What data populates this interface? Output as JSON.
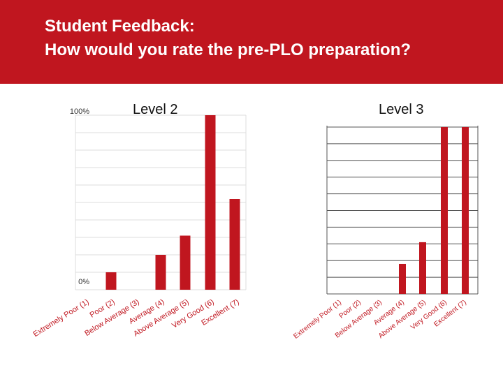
{
  "header": {
    "title_line1": "Student Feedback:",
    "title_line2": "How would you rate the pre-PLO preparation?",
    "background_color": "#c0161f"
  },
  "chart_data": [
    {
      "type": "bar",
      "title": "Level 2",
      "categories": [
        "Extremely Poor (1)",
        "Poor (2)",
        "Below Average (3)",
        "Average (4)",
        "Above Average (5)",
        "Very Good (6)",
        "Excellent (7)"
      ],
      "values": [
        10,
        0,
        0,
        20,
        31,
        100,
        52
      ],
      "ylim": [
        0,
        100
      ],
      "ytick_labels": [
        "0%",
        "100%"
      ],
      "grid": true,
      "bar_color": "#c0161f"
    },
    {
      "type": "bar",
      "title": "Level 3",
      "categories": [
        "Extremely Poor (1)",
        "Poor (2)",
        "Below Average (3)",
        "Average (4)",
        "Above Average (5)",
        "Very Good (6)",
        "Excellent (7)"
      ],
      "values": [
        0,
        0,
        0,
        18,
        31,
        100,
        100
      ],
      "ylim": [
        0,
        100
      ],
      "ytick_labels": [],
      "grid": true,
      "bar_color": "#c0161f"
    }
  ]
}
